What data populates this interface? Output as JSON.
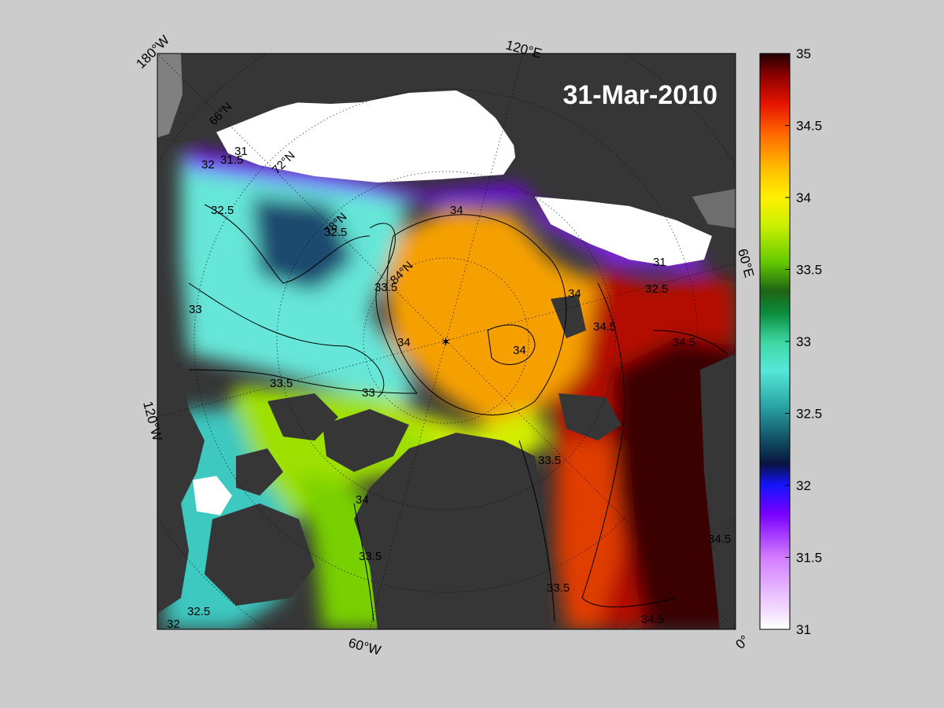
{
  "map": {
    "date": "31-Mar-2010",
    "longitude_labels": [
      "180°W",
      "120°E",
      "60°E",
      "0°",
      "60°W",
      "120°W"
    ],
    "latitude_labels": [
      "66°N",
      "72°N",
      "78°N",
      "84°N"
    ],
    "contour_labels": [
      "31",
      "31.5",
      "32",
      "32.5",
      "33",
      "33.5",
      "34",
      "34.5"
    ],
    "colors": {
      "land": "#363636",
      "land_other": "#808080",
      "ice": "#ffffff",
      "background": "#cccccc"
    }
  },
  "colorbar": {
    "min": 31,
    "max": 35,
    "ticks": [
      "35",
      "34.5",
      "34",
      "33.5",
      "33",
      "32.5",
      "32",
      "31.5",
      "31"
    ],
    "stops": [
      {
        "v": 31.0,
        "c": "#ffffff"
      },
      {
        "v": 31.5,
        "c": "#d27cff"
      },
      {
        "v": 31.8,
        "c": "#7a00ff"
      },
      {
        "v": 32.0,
        "c": "#1414ff"
      },
      {
        "v": 32.15,
        "c": "#0a1440"
      },
      {
        "v": 32.3,
        "c": "#0f4a5e"
      },
      {
        "v": 32.55,
        "c": "#2aa4a4"
      },
      {
        "v": 32.8,
        "c": "#55e8d8"
      },
      {
        "v": 33.0,
        "c": "#3cd6a0"
      },
      {
        "v": 33.2,
        "c": "#0a8c3c"
      },
      {
        "v": 33.35,
        "c": "#1e6414"
      },
      {
        "v": 33.55,
        "c": "#64c800"
      },
      {
        "v": 33.8,
        "c": "#c8f000"
      },
      {
        "v": 34.0,
        "c": "#fff000"
      },
      {
        "v": 34.2,
        "c": "#ffbe00"
      },
      {
        "v": 34.45,
        "c": "#ff6400"
      },
      {
        "v": 34.65,
        "c": "#e61400"
      },
      {
        "v": 34.85,
        "c": "#8c0000"
      },
      {
        "v": 35.0,
        "c": "#1e0000"
      }
    ]
  }
}
